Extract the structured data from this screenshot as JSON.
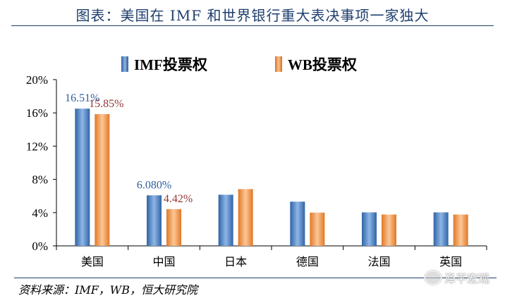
{
  "title": "图表：美国在 IMF 和世界银行重大表决事项一家独大",
  "source": "资料来源：IMF，WB，恒大研究院",
  "watermark": "泽平宏观",
  "colors": {
    "imf": "#4f81bd",
    "wb": "#f79646",
    "title": "#1f3f6e",
    "imf_label": "#2e5d9b",
    "wb_label": "#953735"
  },
  "icons": {
    "watermark": "wechat-logo-icon"
  },
  "chart_data": {
    "type": "bar",
    "categories": [
      "美国",
      "中国",
      "日本",
      "德国",
      "法国",
      "英国"
    ],
    "series": [
      {
        "name": "IMF投票权",
        "values": [
          16.51,
          6.08,
          6.15,
          5.32,
          4.03,
          4.03
        ]
      },
      {
        "name": "WB投票权",
        "values": [
          15.85,
          4.42,
          6.83,
          4.0,
          3.77,
          3.77
        ]
      }
    ],
    "data_labels": [
      {
        "series": 0,
        "index": 0,
        "text": "16.51%"
      },
      {
        "series": 1,
        "index": 0,
        "text": "15.85%"
      },
      {
        "series": 0,
        "index": 1,
        "text": "6.080%"
      },
      {
        "series": 1,
        "index": 1,
        "text": "4.42%"
      }
    ],
    "yticks": [
      "0%",
      "4%",
      "8%",
      "12%",
      "16%",
      "20%"
    ],
    "ylim": [
      0,
      20
    ],
    "legend_position": "top",
    "grid": false
  }
}
